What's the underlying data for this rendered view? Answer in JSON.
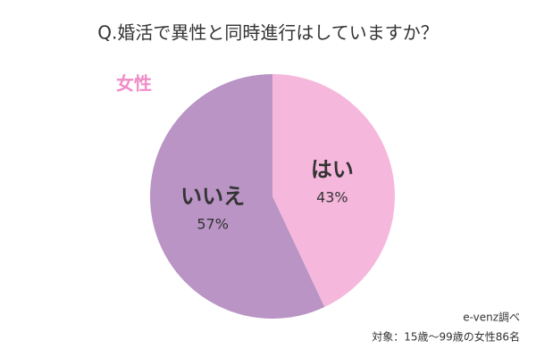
{
  "chart_data": {
    "type": "pie",
    "title": "Q.婚活で異性と同時進行はしていますか？",
    "subtitle": "女性",
    "categories": [
      "はい",
      "いいえ"
    ],
    "values": [
      43,
      57
    ],
    "value_labels": [
      "43%",
      "57%"
    ],
    "colors": [
      "#f5b8dc",
      "#b994c4"
    ],
    "source": "e-venz調べ",
    "note": "対象：15歳〜99歳の女性86名"
  }
}
